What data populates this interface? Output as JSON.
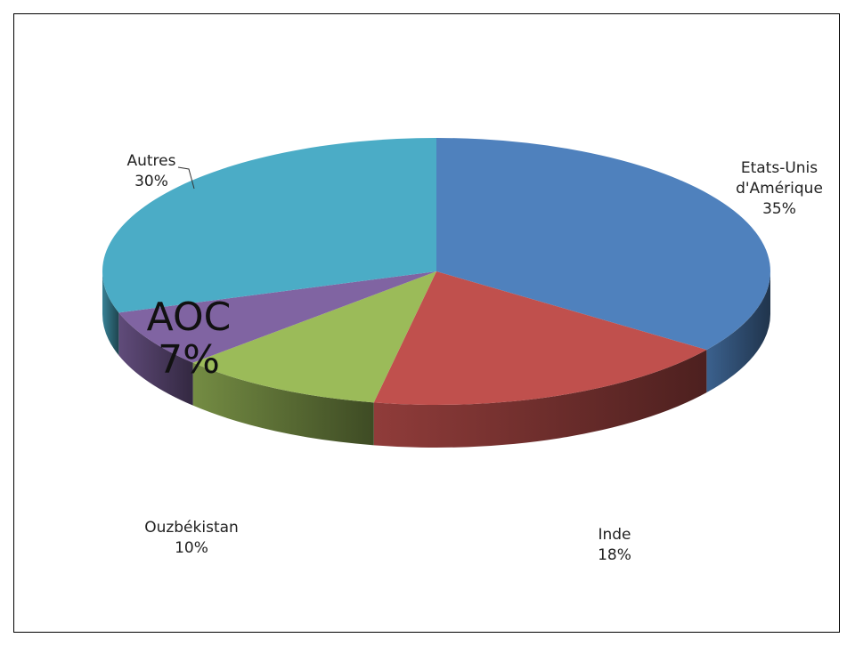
{
  "chart_data": {
    "type": "pie3d",
    "categories": [
      "Etats-Unis d'Amérique",
      "Inde",
      "Ouzbékistan",
      "AOC",
      "Autres"
    ],
    "values": [
      35,
      18,
      10,
      7,
      30
    ],
    "value_labels": [
      "35%",
      "18%",
      "10%",
      "7%",
      "30%"
    ],
    "colors": [
      "#4f81bd",
      "#c0504d",
      "#9bbb59",
      "#8064a2",
      "#4bacc6"
    ]
  }
}
